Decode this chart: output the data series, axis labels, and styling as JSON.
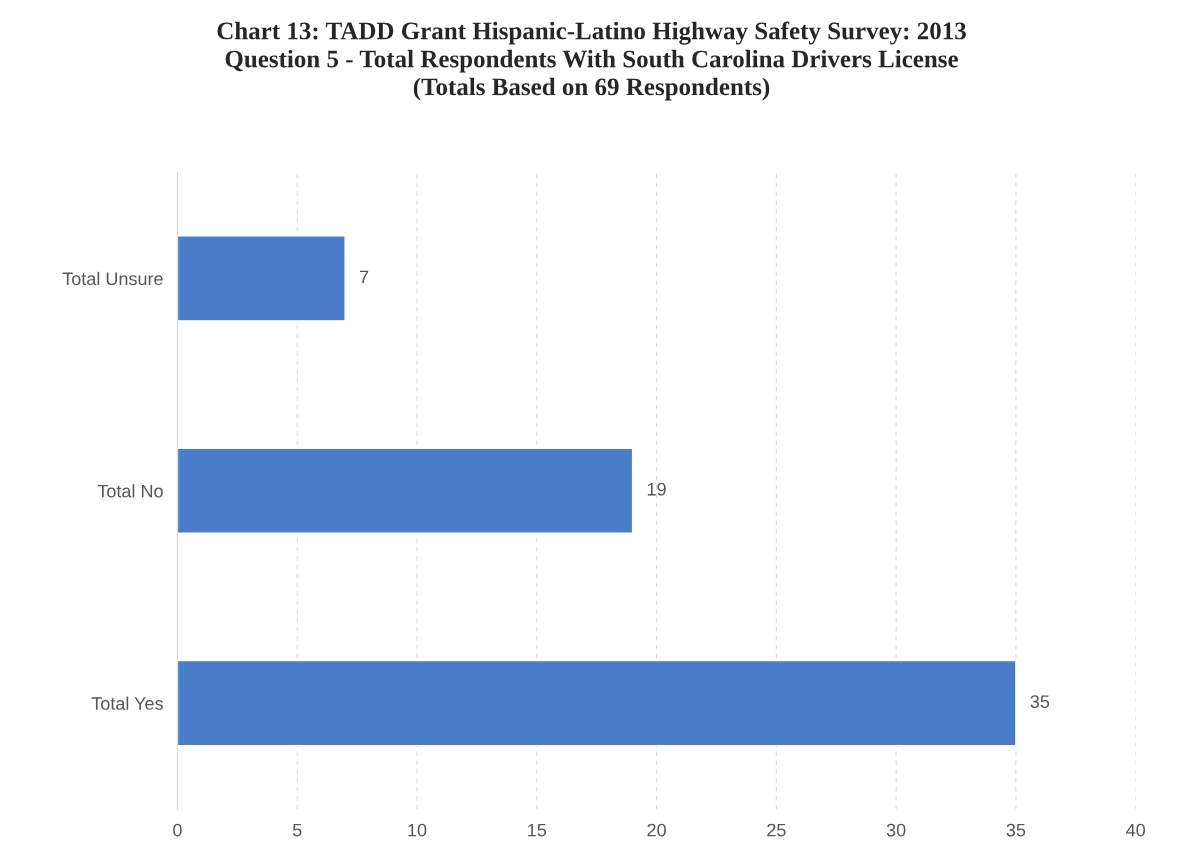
{
  "chart_data": {
    "type": "bar",
    "orientation": "horizontal",
    "title": "Chart 13: TADD Grant Hispanic-Latino Highway Safety Survey: 2013\nQuestion 5 - Total Respondents With South Carolina Drivers License\n(Totals Based on 69 Respondents)",
    "categories": [
      "Total Unsure",
      "Total No",
      "Total Yes"
    ],
    "values": [
      7,
      19,
      35
    ],
    "color": "#4a7ecb",
    "xlim": [
      0,
      40
    ],
    "xticks": [
      0,
      5,
      10,
      15,
      20,
      25,
      30,
      35,
      40
    ],
    "grid": "x",
    "data_labels": true,
    "legend": false
  }
}
